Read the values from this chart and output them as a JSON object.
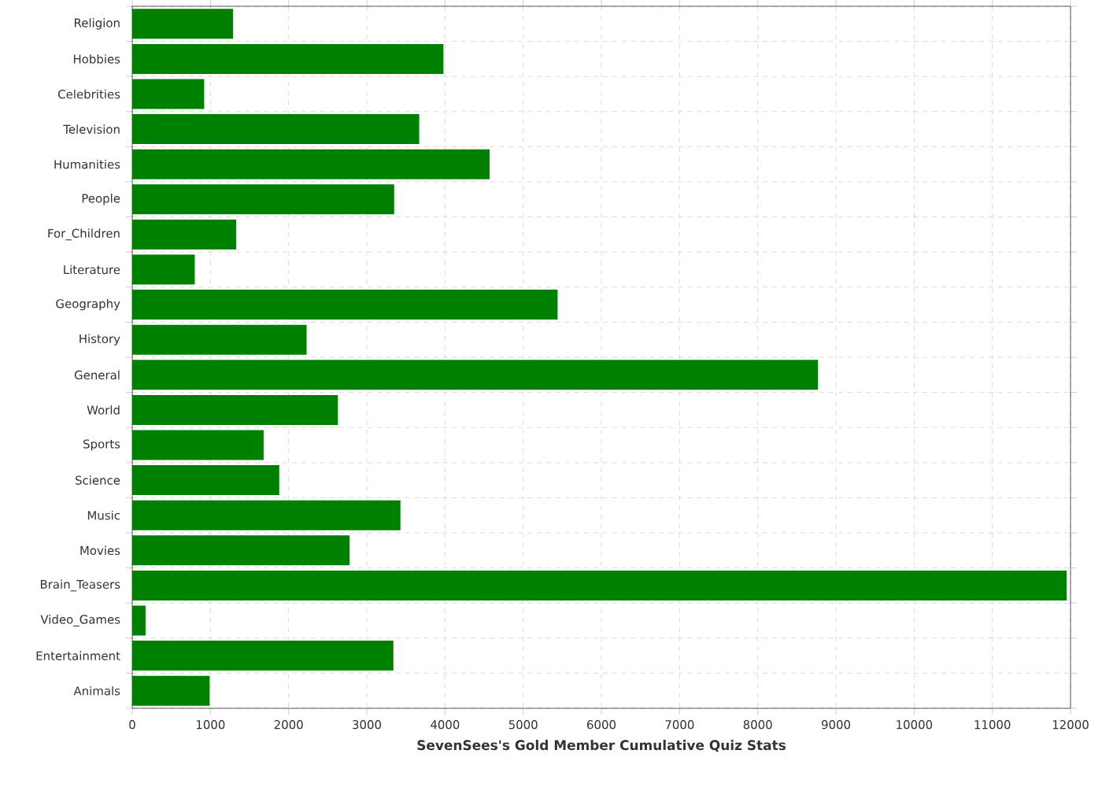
{
  "chart_data": {
    "type": "bar",
    "orientation": "horizontal",
    "xlabel": "SevenSees's Gold Member Cumulative Quiz Stats",
    "categories": [
      "Religion",
      "Hobbies",
      "Celebrities",
      "Television",
      "Humanities",
      "People",
      "For_Children",
      "Literature",
      "Geography",
      "History",
      "General",
      "World",
      "Sports",
      "Science",
      "Music",
      "Movies",
      "Brain_Teasers",
      "Video_Games",
      "Entertainment",
      "Animals"
    ],
    "values": [
      1290,
      3980,
      920,
      3670,
      4570,
      3350,
      1330,
      800,
      5440,
      2230,
      8770,
      2630,
      1680,
      1880,
      3430,
      2780,
      11950,
      170,
      3340,
      990
    ],
    "color": "#008000",
    "xlim": [
      0,
      12000
    ],
    "xticks": [
      0,
      1000,
      2000,
      3000,
      4000,
      5000,
      6000,
      7000,
      8000,
      9000,
      10000,
      11000,
      12000
    ],
    "grid": true
  }
}
